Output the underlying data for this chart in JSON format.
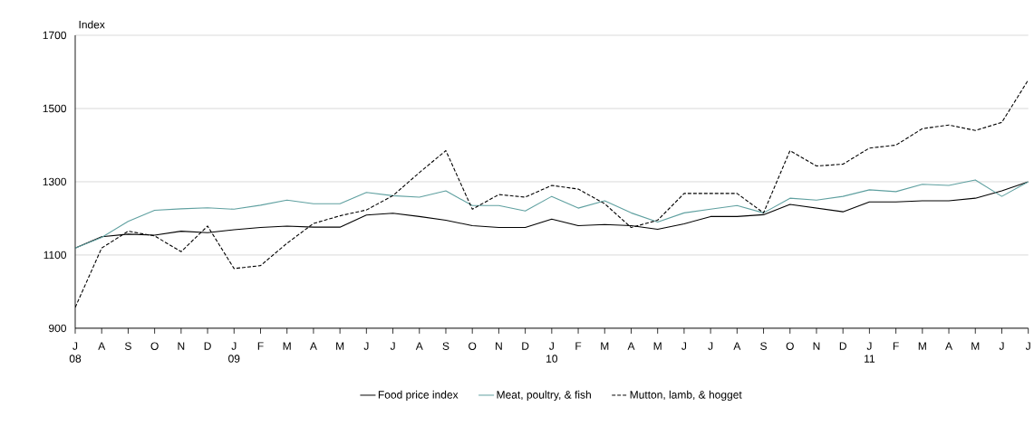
{
  "chart_data": {
    "type": "line",
    "ylabel": "Index",
    "categories": [
      "J\n08",
      "A",
      "S",
      "O",
      "N",
      "D",
      "J\n09",
      "F",
      "M",
      "A",
      "M",
      "J",
      "J",
      "A",
      "S",
      "O",
      "N",
      "D",
      "J\n10",
      "F",
      "M",
      "A",
      "M",
      "J",
      "J",
      "A",
      "S",
      "O",
      "N",
      "D",
      "J\n11",
      "F",
      "M",
      "A",
      "M",
      "J",
      "J"
    ],
    "series": [
      {
        "name": "Food price index",
        "color": "#000000",
        "line_style": "solid",
        "values": [
          1119,
          1150,
          1157,
          1154,
          1165,
          1161,
          1169,
          1175,
          1179,
          1176,
          1176,
          1209,
          1214,
          1205,
          1195,
          1180,
          1175,
          1175,
          1198,
          1180,
          1183,
          1180,
          1170,
          1185,
          1205,
          1205,
          1210,
          1238,
          1228,
          1218,
          1245,
          1245,
          1248,
          1248,
          1255,
          1275,
          1300
        ]
      },
      {
        "name": "Meat, poultry, & fish",
        "color": "#5fa0a0",
        "line_style": "solid",
        "values": [
          1119,
          1148,
          1192,
          1222,
          1226,
          1229,
          1225,
          1236,
          1250,
          1240,
          1240,
          1271,
          1262,
          1258,
          1275,
          1235,
          1235,
          1220,
          1260,
          1228,
          1248,
          1215,
          1190,
          1215,
          1225,
          1235,
          1215,
          1255,
          1250,
          1260,
          1278,
          1273,
          1293,
          1290,
          1305,
          1260,
          1300
        ]
      },
      {
        "name": "Mutton, lamb, & hogget",
        "color": "#000000",
        "line_style": "dashed",
        "values": [
          957,
          1119,
          1165,
          1152,
          1109,
          1179,
          1063,
          1071,
          1132,
          1186,
          1207,
          1223,
          1262,
          1325,
          1385,
          1225,
          1265,
          1258,
          1290,
          1280,
          1240,
          1175,
          1195,
          1268,
          1268,
          1268,
          1215,
          1385,
          1343,
          1348,
          1392,
          1400,
          1445,
          1455,
          1440,
          1462,
          1578
        ]
      }
    ],
    "ylim": [
      900,
      1700
    ],
    "yticks": [
      900,
      1100,
      1300,
      1500,
      1700
    ],
    "grid": "y",
    "legend": "bottom",
    "marker": "none"
  }
}
